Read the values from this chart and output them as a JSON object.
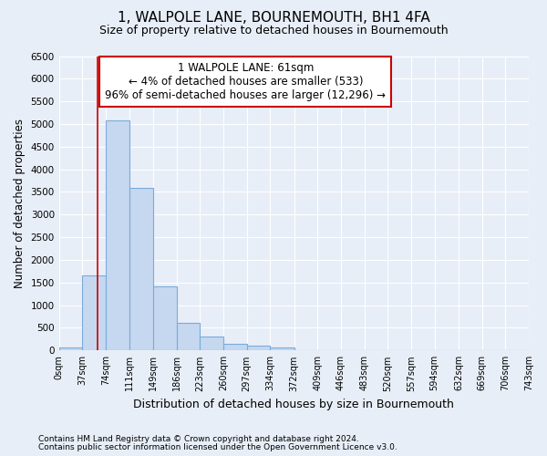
{
  "title": "1, WALPOLE LANE, BOURNEMOUTH, BH1 4FA",
  "subtitle": "Size of property relative to detached houses in Bournemouth",
  "xlabel": "Distribution of detached houses by size in Bournemouth",
  "ylabel": "Number of detached properties",
  "footnote1": "Contains HM Land Registry data © Crown copyright and database right 2024.",
  "footnote2": "Contains public sector information licensed under the Open Government Licence v3.0.",
  "annotation_line1": "1 WALPOLE LANE: 61sqm",
  "annotation_line2": "← 4% of detached houses are smaller (533)",
  "annotation_line3": "96% of semi-detached houses are larger (12,296) →",
  "property_size": 61,
  "bar_bins": [
    0,
    37,
    74,
    111,
    149,
    186,
    223,
    260,
    297,
    334,
    372,
    409,
    446,
    483,
    520,
    557,
    594,
    632,
    669,
    706,
    743
  ],
  "bar_heights": [
    75,
    1650,
    5075,
    3600,
    1420,
    620,
    310,
    155,
    100,
    75,
    0,
    0,
    0,
    0,
    0,
    0,
    0,
    0,
    0,
    0
  ],
  "bar_color": "#c5d8f0",
  "bar_edge_color": "#7aacda",
  "bar_edge_width": 0.8,
  "vline_color": "#cc0000",
  "vline_x": 61,
  "annotation_box_color": "#cc0000",
  "bg_color": "#e8eef7",
  "plot_bg_color": "#e8eef7",
  "grid_color": "#ffffff",
  "ylim": [
    0,
    6500
  ],
  "yticks": [
    0,
    500,
    1000,
    1500,
    2000,
    2500,
    3000,
    3500,
    4000,
    4500,
    5000,
    5500,
    6000,
    6500
  ]
}
